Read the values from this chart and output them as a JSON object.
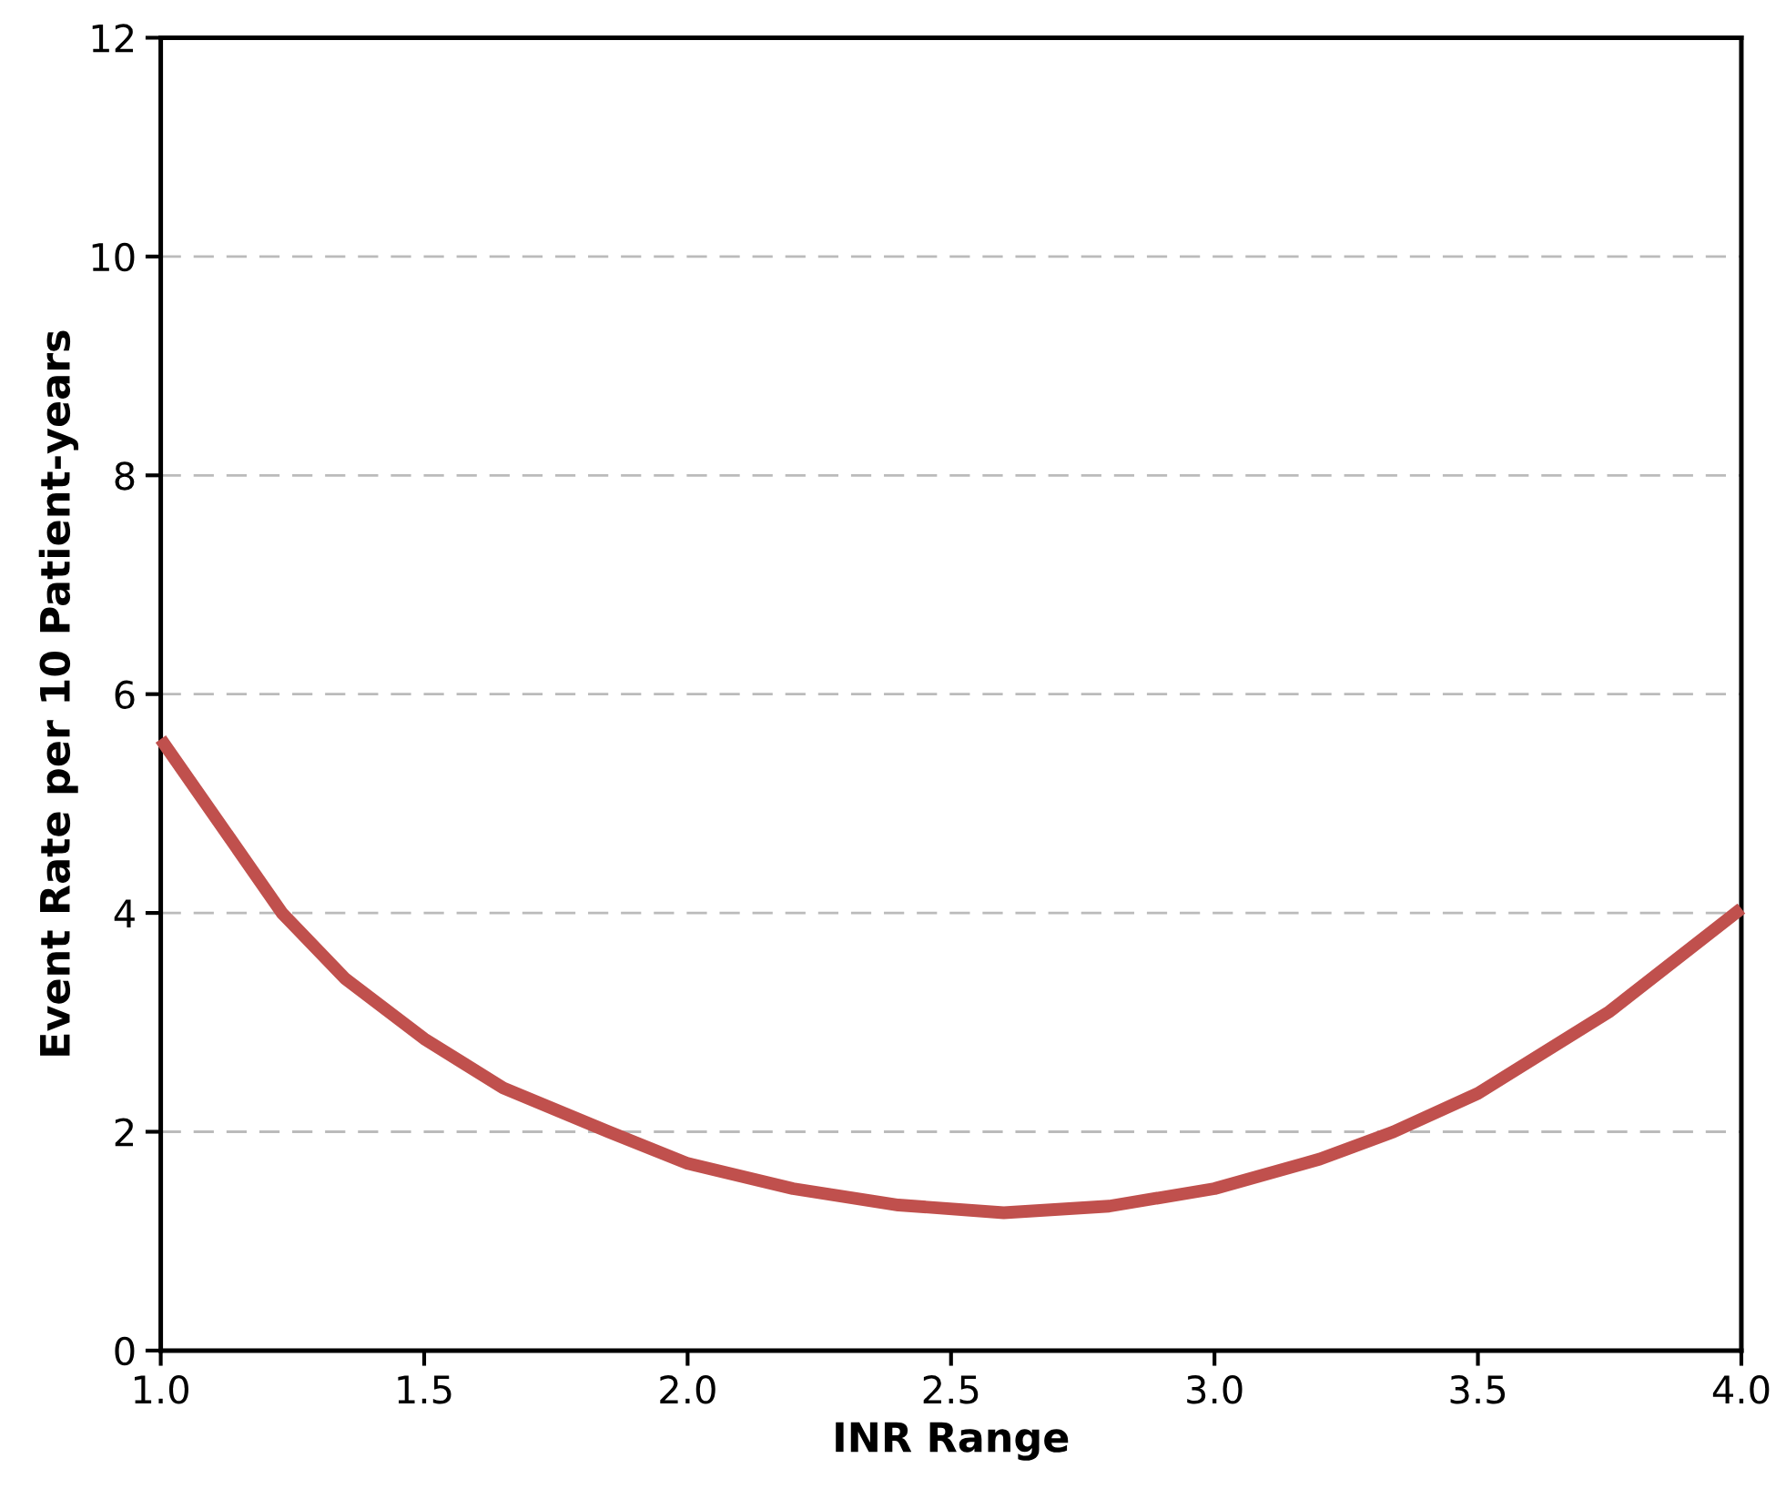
{
  "chart_data": {
    "type": "line",
    "xlabel": "INR Range",
    "ylabel": "Event Rate per 10 Patient-years",
    "x": [
      1.0,
      1.1,
      1.23,
      1.35,
      1.5,
      1.65,
      1.85,
      2.0,
      2.2,
      2.4,
      2.6,
      2.8,
      3.0,
      3.2,
      3.34,
      3.5,
      3.75,
      4.0
    ],
    "series": [
      {
        "color": "#c0504d",
        "values": [
          5.59,
          4.9,
          4.0,
          3.4,
          2.85,
          2.4,
          2.0,
          1.71,
          1.48,
          1.33,
          1.26,
          1.32,
          1.48,
          1.75,
          2.0,
          2.35,
          3.1,
          4.04
        ]
      }
    ],
    "xlim": [
      1.0,
      4.0
    ],
    "ylim": [
      0,
      12
    ],
    "xticks": [
      {
        "value": 1.0,
        "label": "1.0"
      },
      {
        "value": 1.5,
        "label": "1.5"
      },
      {
        "value": 2.0,
        "label": "2.0"
      },
      {
        "value": 2.5,
        "label": "2.5"
      },
      {
        "value": 3.0,
        "label": "3.0"
      },
      {
        "value": 3.5,
        "label": "3.5"
      },
      {
        "value": 4.0,
        "label": "4.0"
      }
    ],
    "yticks": [
      0,
      2,
      4,
      6,
      8,
      10,
      12
    ],
    "grid": "y",
    "marker": "none",
    "line_style": "solid",
    "legend": false
  }
}
